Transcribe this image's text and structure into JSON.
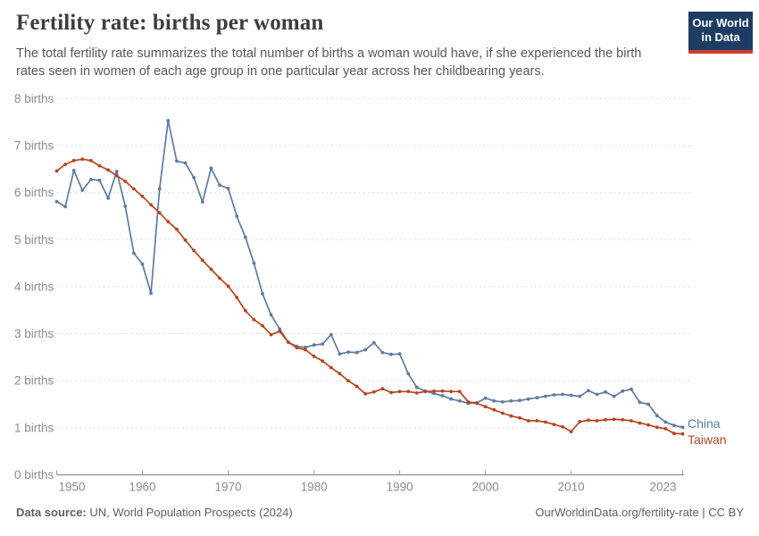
{
  "header": {
    "title": "Fertility rate: births per woman",
    "subtitle": "The total fertility rate summarizes the total number of births a woman would have, if she experienced the birth rates seen in women of each age group in one particular year across her childbearing years.",
    "logo": {
      "line1": "Our World",
      "line2": "in Data",
      "bg_color": "#1d3d63",
      "strip_color": "#d13b32"
    }
  },
  "footer": {
    "source_label": "Data source:",
    "source_text": " UN, World Population Prospects (2024)",
    "right_text": "OurWorldinData.org/fertility-rate | CC BY"
  },
  "chart_data": {
    "type": "line",
    "title": "Fertility rate: births per woman",
    "xlabel": "",
    "ylabel": "births per woman",
    "ylim": [
      0,
      8
    ],
    "grid": true,
    "legend_position": "end-of-line",
    "ytick_values": [
      0,
      1,
      2,
      3,
      4,
      5,
      6,
      7,
      8
    ],
    "ytick_labels": [
      "0 births",
      "1 births",
      "2 births",
      "3 births",
      "4 births",
      "5 births",
      "6 births",
      "7 births",
      "8 births"
    ],
    "xtick_values": [
      1950,
      1960,
      1970,
      1980,
      1990,
      2000,
      2010,
      2023
    ],
    "x": [
      1950,
      1951,
      1952,
      1953,
      1954,
      1955,
      1956,
      1957,
      1958,
      1959,
      1960,
      1961,
      1962,
      1963,
      1964,
      1965,
      1966,
      1967,
      1968,
      1969,
      1970,
      1971,
      1972,
      1973,
      1974,
      1975,
      1976,
      1977,
      1978,
      1979,
      1980,
      1981,
      1982,
      1983,
      1984,
      1985,
      1986,
      1987,
      1988,
      1989,
      1990,
      1991,
      1992,
      1993,
      1994,
      1995,
      1996,
      1997,
      1998,
      1999,
      2000,
      2001,
      2002,
      2003,
      2004,
      2005,
      2006,
      2007,
      2008,
      2009,
      2010,
      2011,
      2012,
      2013,
      2014,
      2015,
      2016,
      2017,
      2018,
      2019,
      2020,
      2021,
      2022,
      2023
    ],
    "series": [
      {
        "name": "China",
        "color": "#5b7ba3",
        "values": [
          5.81,
          5.7,
          6.47,
          6.05,
          6.28,
          6.26,
          5.88,
          6.45,
          5.71,
          4.71,
          4.48,
          3.86,
          6.08,
          7.53,
          6.67,
          6.63,
          6.32,
          5.8,
          6.52,
          6.16,
          6.09,
          5.5,
          5.05,
          4.5,
          3.85,
          3.4,
          3.1,
          2.82,
          2.73,
          2.71,
          2.76,
          2.78,
          2.98,
          2.57,
          2.61,
          2.6,
          2.66,
          2.81,
          2.6,
          2.56,
          2.57,
          2.15,
          1.86,
          1.78,
          1.73,
          1.68,
          1.61,
          1.57,
          1.52,
          1.53,
          1.63,
          1.57,
          1.55,
          1.57,
          1.58,
          1.61,
          1.64,
          1.67,
          1.7,
          1.71,
          1.69,
          1.67,
          1.79,
          1.71,
          1.76,
          1.67,
          1.78,
          1.82,
          1.54,
          1.5,
          1.26,
          1.12,
          1.05,
          1.01
        ]
      },
      {
        "name": "Taiwan",
        "color": "#b8431d",
        "values": [
          6.46,
          6.6,
          6.68,
          6.71,
          6.68,
          6.57,
          6.48,
          6.36,
          6.24,
          6.08,
          5.92,
          5.74,
          5.57,
          5.38,
          5.22,
          4.99,
          4.77,
          4.56,
          4.37,
          4.18,
          4.01,
          3.77,
          3.49,
          3.3,
          3.17,
          2.98,
          3.05,
          2.82,
          2.7,
          2.66,
          2.52,
          2.42,
          2.28,
          2.15,
          2.0,
          1.88,
          1.72,
          1.76,
          1.83,
          1.75,
          1.77,
          1.77,
          1.74,
          1.77,
          1.78,
          1.78,
          1.77,
          1.77,
          1.55,
          1.52,
          1.45,
          1.38,
          1.31,
          1.25,
          1.21,
          1.15,
          1.15,
          1.12,
          1.07,
          1.02,
          0.92,
          1.13,
          1.16,
          1.15,
          1.17,
          1.18,
          1.17,
          1.15,
          1.1,
          1.06,
          1.01,
          0.98,
          0.88,
          0.87
        ]
      }
    ]
  }
}
